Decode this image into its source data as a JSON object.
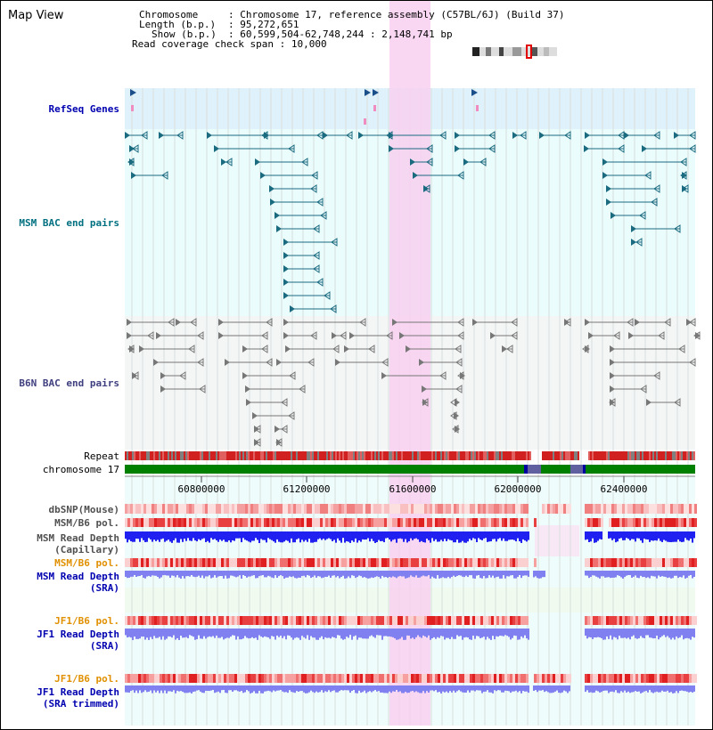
{
  "page": {
    "title": "Map View"
  },
  "info": {
    "chromosome_label": "Chromosome",
    "chromosome_value": "Chromosome 17, reference assembly (C57BL/6J) (Build 37)",
    "length_label": "Length (b.p.)",
    "length_value": "95,272,651",
    "show_label": "Show (b.p.)",
    "show_value": "60,599,504-62,748,244 : 2,148,741 bp",
    "coverage_label": "Read coverage check span",
    "coverage_value": "10,000"
  },
  "tracks": {
    "refseq": "RefSeq Genes",
    "msm_bac": "MSM BAC end pairs",
    "b6n_bac": "B6N BAC end pairs",
    "repeat": "Repeat",
    "chromosome": "chromosome 17",
    "dbsnp": "dbSNP(Mouse)",
    "msm_b6_pol_1": "MSM/B6 pol.",
    "msm_depth_cap_1": "MSM Read Depth",
    "msm_depth_cap_2": "(Capillary)",
    "msm_b6_pol_2": "MSM/B6 pol.",
    "msm_depth_sra_1": "MSM Read Depth",
    "msm_depth_sra_2": "(SRA)",
    "jf1_b6_pol_1": "JF1/B6 pol.",
    "jf1_depth_sra_1": "JF1 Read Depth",
    "jf1_depth_sra_2": "(SRA)",
    "jf1_b6_pol_2": "JF1/B6 pol.",
    "jf1_depth_trim_1": "JF1 Read Depth",
    "jf1_depth_trim_2": "(SRA trimmed)"
  },
  "axis": {
    "ticks": [
      "60800000",
      "61200000",
      "61600000",
      "62000000",
      "62400000"
    ]
  },
  "colors": {
    "refseq_label": "#0000b0",
    "msm_label": "#007080",
    "b6n_label": "#404080",
    "orange_label": "#e09000",
    "blue_label": "#0000b0",
    "highlight": "#f8d0f0",
    "chrom_green": "#008000",
    "depth_dark": "#2020f0",
    "depth_light": "#8080f0",
    "snp_red": "#e83030"
  }
}
